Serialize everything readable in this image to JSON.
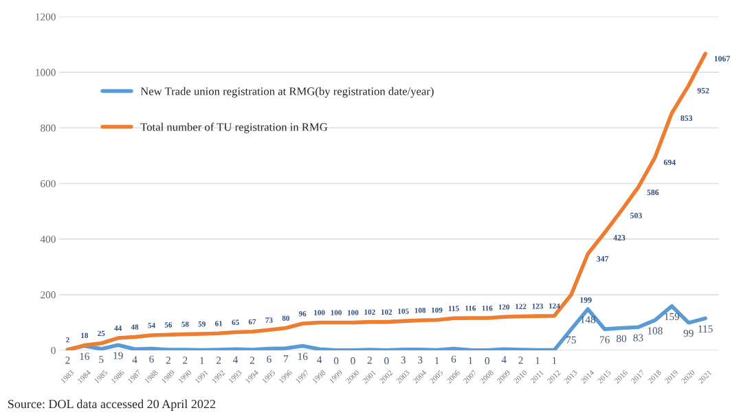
{
  "chart_data": {
    "type": "line",
    "categories": [
      "1983",
      "1984",
      "1985",
      "1986",
      "1987",
      "1988",
      "1989",
      "1990",
      "1991",
      "1992",
      "1993",
      "1994",
      "1995",
      "1996",
      "1997",
      "1998",
      "1999",
      "2000",
      "2001",
      "2002",
      "2003",
      "2004",
      "2005",
      "2006",
      "2007",
      "2008",
      "2009",
      "2010",
      "2011",
      "2012",
      "2013",
      "2014",
      "2015",
      "2016",
      "2017",
      "2018",
      "2019",
      "2020",
      "2021"
    ],
    "series": [
      {
        "name": "New Trade union registration at RMG(by registration date/year)",
        "color": "#5b9bd5",
        "values": [
          2,
          16,
          5,
          19,
          4,
          6,
          2,
          2,
          1,
          2,
          4,
          2,
          6,
          7,
          16,
          4,
          0,
          0,
          2,
          0,
          3,
          3,
          1,
          6,
          1,
          0,
          4,
          2,
          1,
          1,
          75,
          148,
          76,
          80,
          83,
          108,
          159,
          99,
          115
        ]
      },
      {
        "name": "Total number of TU registration in RMG",
        "color": "#ed7d31",
        "values": [
          2,
          18,
          25,
          44,
          48,
          54,
          56,
          58,
          59,
          61,
          65,
          67,
          73,
          80,
          96,
          100,
          100,
          100,
          102,
          102,
          105,
          108,
          109,
          115,
          116,
          116,
          120,
          122,
          123,
          124,
          199,
          347,
          423,
          503,
          586,
          694,
          853,
          952,
          1067
        ]
      }
    ],
    "ylim": [
      0,
      1200
    ],
    "yticks": [
      0,
      200,
      400,
      600,
      800,
      1000,
      1200
    ],
    "grid": "y",
    "legend": "top left",
    "marker": "none",
    "line_style": "solid",
    "data_labels": true,
    "annotations": [
      "Source: DOL data accessed 20 April 2022"
    ]
  }
}
